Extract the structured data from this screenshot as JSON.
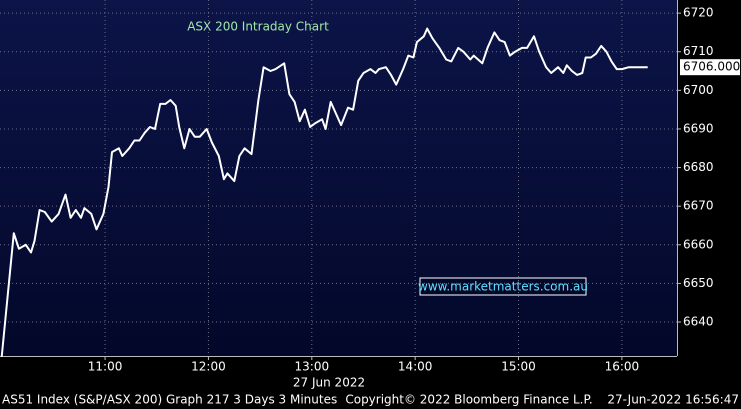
{
  "chart_data": {
    "type": "line",
    "title": "ASX 200 Intraday Chart",
    "date_label": "27 Jun 2022",
    "watermark": "www.marketmatters.com.au",
    "footer": {
      "left": "AS51 Index (S&P/ASX 200) Graph 217 3 Days 3 Minutes",
      "center": "Copyright© 2022 Bloomberg Finance L.P.",
      "right": "27-Jun-2022 16:56:47"
    },
    "current_label": "6706.000",
    "grid": true,
    "x": [
      "10:00",
      "10:07",
      "10:10",
      "10:14",
      "10:17",
      "10:19",
      "10:22",
      "10:25",
      "10:29",
      "10:33",
      "10:37",
      "10:40",
      "10:43",
      "10:46",
      "10:48",
      "10:52",
      "10:55",
      "10:59",
      "11:02",
      "11:04",
      "11:08",
      "11:10",
      "11:14",
      "11:17",
      "11:20",
      "11:23",
      "11:26",
      "11:29",
      "11:32",
      "11:35",
      "11:38",
      "11:41",
      "11:43",
      "11:46",
      "11:49",
      "11:52",
      "11:55",
      "11:59",
      "12:02",
      "12:06",
      "12:09",
      "12:11",
      "12:15",
      "12:18",
      "12:21",
      "12:25",
      "12:29",
      "12:32",
      "12:36",
      "12:39",
      "12:44",
      "12:47",
      "12:50",
      "12:53",
      "12:56",
      "12:59",
      "13:02",
      "13:06",
      "13:08",
      "13:11",
      "13:14",
      "13:17",
      "13:21",
      "13:24",
      "13:27",
      "13:30",
      "13:34",
      "13:37",
      "13:39",
      "13:43",
      "13:46",
      "13:49",
      "13:53",
      "13:56",
      "13:59",
      "14:01",
      "14:05",
      "14:07",
      "14:10",
      "14:14",
      "14:18",
      "14:21",
      "14:25",
      "14:28",
      "14:32",
      "14:34",
      "14:39",
      "14:42",
      "14:46",
      "14:49",
      "14:52",
      "14:55",
      "14:58",
      "15:02",
      "15:05",
      "15:09",
      "15:12",
      "15:16",
      "15:19",
      "15:23",
      "15:26",
      "15:28",
      "15:31",
      "15:34",
      "15:37",
      "15:39",
      "15:42",
      "15:45",
      "15:48",
      "15:51",
      "15:54",
      "15:57",
      "16:00",
      "16:04",
      "16:10",
      "16:15"
    ],
    "series": [
      {
        "name": "AS51 Index",
        "color": "#ffffff",
        "values": [
          6631,
          6663,
          6659,
          6660,
          6658,
          6661,
          6669,
          6668.5,
          6666,
          6668,
          6673,
          6667,
          6669,
          6667,
          6669.5,
          6668,
          6664,
          6668,
          6675,
          6684,
          6685,
          6683,
          6685,
          6687,
          6687,
          6689,
          6690.5,
          6690,
          6696.5,
          6696.5,
          6697.5,
          6696,
          6690.5,
          6685,
          6690,
          6688,
          6688,
          6690,
          6686.5,
          6683,
          6677,
          6678.5,
          6676.5,
          6683,
          6685,
          6683.5,
          6697.5,
          6706,
          6705,
          6705.5,
          6707,
          6699,
          6697,
          6692,
          6695,
          6690.5,
          6691.5,
          6692.5,
          6690,
          6697,
          6694,
          6691,
          6695.5,
          6695,
          6702.5,
          6704.5,
          6705.5,
          6704.5,
          6705.5,
          6706,
          6704,
          6701.5,
          6705.5,
          6709,
          6708.5,
          6712.5,
          6714,
          6716,
          6713.5,
          6711,
          6708,
          6707.5,
          6711,
          6710,
          6708,
          6709,
          6707,
          6711,
          6715,
          6713,
          6712.5,
          6709,
          6710,
          6711,
          6711,
          6714,
          6710,
          6706,
          6704.5,
          6706,
          6704.5,
          6706.5,
          6705,
          6704,
          6704.5,
          6708.5,
          6708.5,
          6709.5,
          6711.5,
          6710,
          6707.5,
          6705.5,
          6705.5,
          6706,
          6706,
          6706
        ]
      }
    ],
    "xlim": [
      "09:59",
      "16:32"
    ],
    "xticks": [
      "11:00",
      "12:00",
      "13:00",
      "14:00",
      "15:00",
      "16:00"
    ],
    "ylim": [
      6631.2,
      6723.4
    ],
    "yticks": [
      6640,
      6650,
      6660,
      6670,
      6680,
      6690,
      6700,
      6710,
      6720
    ]
  }
}
